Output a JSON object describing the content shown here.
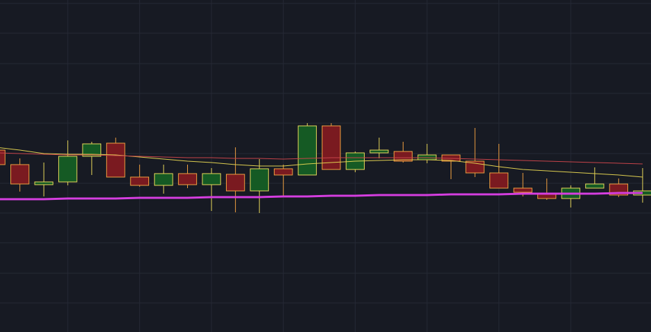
{
  "chart_data": {
    "type": "candlestick",
    "background": "#171a23",
    "grid": true,
    "grid_color": "#252935",
    "up_color": "#155a24",
    "down_color": "#7a1a20",
    "up_border": "#e8d85a",
    "down_border": "#f0a040",
    "x": [
      0,
      1,
      2,
      3,
      4,
      5,
      6,
      7,
      8,
      9,
      10,
      11,
      12,
      13,
      14,
      15,
      16,
      17,
      18,
      19,
      20,
      21,
      22,
      23,
      24,
      25,
      26,
      27
    ],
    "xlim": [
      0.17,
      27.35
    ],
    "xticks": [
      3,
      6,
      9,
      12,
      15,
      18,
      21,
      24
    ],
    "ylim": [
      0,
      480
    ],
    "yticks": [
      475,
      432,
      388,
      345,
      302,
      258,
      215,
      172,
      129,
      85,
      42
    ],
    "open": [
      263,
      242,
      213,
      217,
      254,
      273,
      224,
      212,
      229,
      213,
      228,
      204,
      236,
      227,
      298,
      235,
      259,
      261,
      249,
      256,
      247,
      230,
      208,
      201,
      193,
      208,
      214,
      198
    ],
    "high": [
      270,
      251,
      245,
      277,
      275,
      281,
      242,
      242,
      242,
      237,
      267,
      250,
      242,
      302,
      302,
      261,
      281,
      275,
      272,
      256,
      295,
      272,
      230,
      222,
      212,
      238,
      222,
      237
    ],
    "low": [
      240,
      203,
      196,
      212,
      227,
      224,
      210,
      200,
      208,
      175,
      173,
      172,
      197,
      227,
      235,
      231,
      251,
      245,
      244,
      221,
      224,
      208,
      196,
      191,
      180,
      208,
      195,
      187
    ],
    "close": [
      242,
      214,
      217,
      254,
      272,
      224,
      212,
      229,
      213,
      229,
      204,
      236,
      227,
      298,
      235,
      259,
      263,
      247,
      256,
      247,
      230,
      208,
      202,
      193,
      208,
      214,
      198,
      204
    ],
    "series": [
      {
        "color": "#e0d050",
        "width": 1,
        "values": [
          267,
          263,
          258,
          257,
          257,
          256,
          253,
          250,
          247,
          245,
          242,
          240,
          240,
          243,
          245,
          247,
          248,
          249,
          249,
          248,
          244,
          239,
          235,
          233,
          231,
          229,
          227,
          224
        ]
      },
      {
        "color": "#c8444a",
        "width": 1,
        "values": [
          259,
          258,
          257,
          256,
          256,
          255,
          254,
          253,
          252,
          252,
          251,
          251,
          250,
          251,
          252,
          252,
          252,
          252,
          252,
          251,
          250,
          249,
          248,
          247,
          246,
          245,
          244,
          243
        ]
      },
      {
        "color": "#d63ee0",
        "width": 3,
        "values": [
          192,
          192,
          192,
          193,
          193,
          193,
          194,
          194,
          194,
          195,
          195,
          195,
          196,
          196,
          197,
          197,
          198,
          198,
          198,
          199,
          199,
          199,
          200,
          200,
          200,
          200,
          201,
          201
        ]
      }
    ]
  }
}
